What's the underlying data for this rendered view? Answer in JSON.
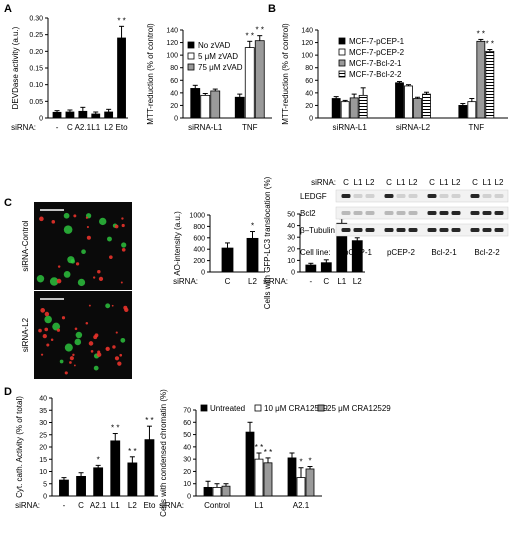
{
  "panels": {
    "A": {
      "label": "A"
    },
    "B": {
      "label": "B"
    },
    "C": {
      "label": "C"
    },
    "D": {
      "label": "D"
    }
  },
  "blot": {
    "sirna_label": "siRNA:",
    "lanes": [
      "C",
      "L1",
      "L2",
      "C",
      "L1",
      "L2",
      "C",
      "L1",
      "L2",
      "C",
      "L1",
      "L2"
    ],
    "rows": [
      "LEDGF",
      "Bcl2",
      "β–Tubulin"
    ],
    "cellline_label": "Cell line:",
    "celllines": [
      "pCEP-1",
      "pCEP-2",
      "Bcl-2-1",
      "Bcl-2-2"
    ]
  },
  "micro": {
    "top_label": "siRNA-Control",
    "bottom_label": "siRNA-L2"
  },
  "colors": {
    "black": "#000000",
    "white": "#ffffff",
    "grey": "#9a9a9a",
    "micro_bg": "#0a0a0a",
    "green": "#2ecc40",
    "red": "#e8322a"
  },
  "chart_data": [
    {
      "id": "A1",
      "type": "bar",
      "ylabel": "DEVDase activity (a.u.)",
      "ylim": [
        0,
        0.3
      ],
      "yticks": [
        "0",
        "0.05",
        "0.10",
        "0.15",
        "0.20",
        "0.25",
        "0.30"
      ],
      "xprefix": "siRNA:",
      "categories": [
        "-",
        "C",
        "A2.1",
        "L1",
        "L2",
        "Eto"
      ],
      "values": [
        0.017,
        0.018,
        0.02,
        0.012,
        0.018,
        0.24
      ],
      "errors": [
        0.005,
        0.006,
        0.012,
        0.006,
        0.008,
        0.035
      ],
      "sig": [
        "",
        "",
        "",
        "",
        "",
        "* *"
      ]
    },
    {
      "id": "A2",
      "type": "bar",
      "ylabel": "MTT-reduction (% of control)",
      "ylim": [
        0,
        140
      ],
      "yticks": [
        "0",
        "20",
        "40",
        "60",
        "80",
        "100",
        "120",
        "140"
      ],
      "groups": [
        "siRNA-L1",
        "TNF"
      ],
      "series": [
        {
          "name": "No zVAD",
          "values": [
            47,
            33
          ],
          "errors": [
            5,
            5
          ],
          "sig": [
            "",
            ""
          ]
        },
        {
          "name": "5 μM zVAD",
          "values": [
            36,
            112
          ],
          "errors": [
            3,
            10
          ],
          "sig": [
            "",
            "* *"
          ]
        },
        {
          "name": "75 μM zVAD",
          "values": [
            43,
            123
          ],
          "errors": [
            3,
            8
          ],
          "sig": [
            "",
            "* *"
          ]
        }
      ]
    },
    {
      "id": "B1",
      "type": "bar",
      "ylabel": "MTT-reduction (% of control)",
      "ylim": [
        0,
        140
      ],
      "yticks": [
        "0",
        "20",
        "40",
        "60",
        "80",
        "100",
        "120",
        "140"
      ],
      "groups": [
        "siRNA-L1",
        "siRNA-L2",
        "TNF"
      ],
      "series": [
        {
          "name": "MCF-7-pCEP-1",
          "values": [
            31,
            56,
            20
          ],
          "errors": [
            3,
            2,
            3
          ],
          "sig": [
            "",
            "",
            ""
          ]
        },
        {
          "name": "MCF-7-pCEP-2",
          "values": [
            26,
            51,
            26
          ],
          "errors": [
            2,
            2,
            5
          ],
          "sig": [
            "",
            "",
            ""
          ]
        },
        {
          "name": "MCF-7-Bcl-2-1",
          "values": [
            32,
            31,
            122
          ],
          "errors": [
            6,
            2,
            3
          ],
          "sig": [
            "",
            "",
            "* *"
          ]
        },
        {
          "name": "MCF-7-Bcl-2-2",
          "values": [
            36,
            38,
            106
          ],
          "errors": [
            12,
            3,
            3
          ],
          "sig": [
            "",
            "",
            "* *"
          ]
        }
      ]
    },
    {
      "id": "C1",
      "type": "bar",
      "ylabel": "AO-intensity (a.u.)",
      "ylim": [
        0,
        1000
      ],
      "yticks": [
        "0",
        "200",
        "400",
        "600",
        "800",
        "1000"
      ],
      "xprefix": "siRNA:",
      "categories": [
        "C",
        "L2"
      ],
      "values": [
        420,
        590
      ],
      "errors": [
        90,
        120
      ],
      "sig": [
        "",
        "*"
      ]
    },
    {
      "id": "C2",
      "type": "bar",
      "ylabel": "Cells with GFP-LC3 translocation (%)",
      "ylim": [
        0,
        50
      ],
      "yticks": [
        "0",
        "10",
        "20",
        "30",
        "40",
        "50"
      ],
      "xprefix": "siRNA:",
      "categories": [
        "-",
        "C",
        "L1",
        "L2"
      ],
      "values": [
        6,
        8,
        42,
        27
      ],
      "errors": [
        1.5,
        2.5,
        4,
        2.5
      ],
      "sig": [
        "",
        "",
        "* *",
        "* *"
      ]
    },
    {
      "id": "D1",
      "type": "bar",
      "ylabel": "Cyt. cath. Activity (% of total)",
      "ylim": [
        0,
        40
      ],
      "yticks": [
        "0",
        "5",
        "10",
        "15",
        "20",
        "25",
        "30",
        "35",
        "40"
      ],
      "xprefix": "siRNA:",
      "categories": [
        "-",
        "C",
        "A2.1",
        "L1",
        "L2",
        "Eto"
      ],
      "values": [
        6.5,
        8,
        11.5,
        22.5,
        13.5,
        23
      ],
      "errors": [
        1,
        1.5,
        1,
        3,
        2.5,
        5.5
      ],
      "sig": [
        "",
        "",
        "*",
        "* *",
        "* *",
        "* *"
      ]
    },
    {
      "id": "D2",
      "type": "bar",
      "ylabel": "Cells with condensed chromatin (%)",
      "ylim": [
        0,
        70
      ],
      "yticks": [
        "0",
        "10",
        "20",
        "30",
        "40",
        "50",
        "60",
        "70"
      ],
      "xprefix": "siRNA:",
      "groups": [
        "Control",
        "L1",
        "A2.1"
      ],
      "series": [
        {
          "name": "Untreated",
          "values": [
            7,
            52,
            31
          ],
          "errors": [
            5,
            8,
            4
          ],
          "sig": [
            "",
            "",
            ""
          ]
        },
        {
          "name": "10 μM CRA12529",
          "values": [
            7,
            30,
            15
          ],
          "errors": [
            3,
            5,
            8
          ],
          "sig": [
            "",
            "* *",
            "*"
          ]
        },
        {
          "name": "25 μM CRA12529",
          "values": [
            8,
            27,
            22
          ],
          "errors": [
            2,
            4,
            2
          ],
          "sig": [
            "",
            "* *",
            "*"
          ]
        }
      ]
    }
  ]
}
